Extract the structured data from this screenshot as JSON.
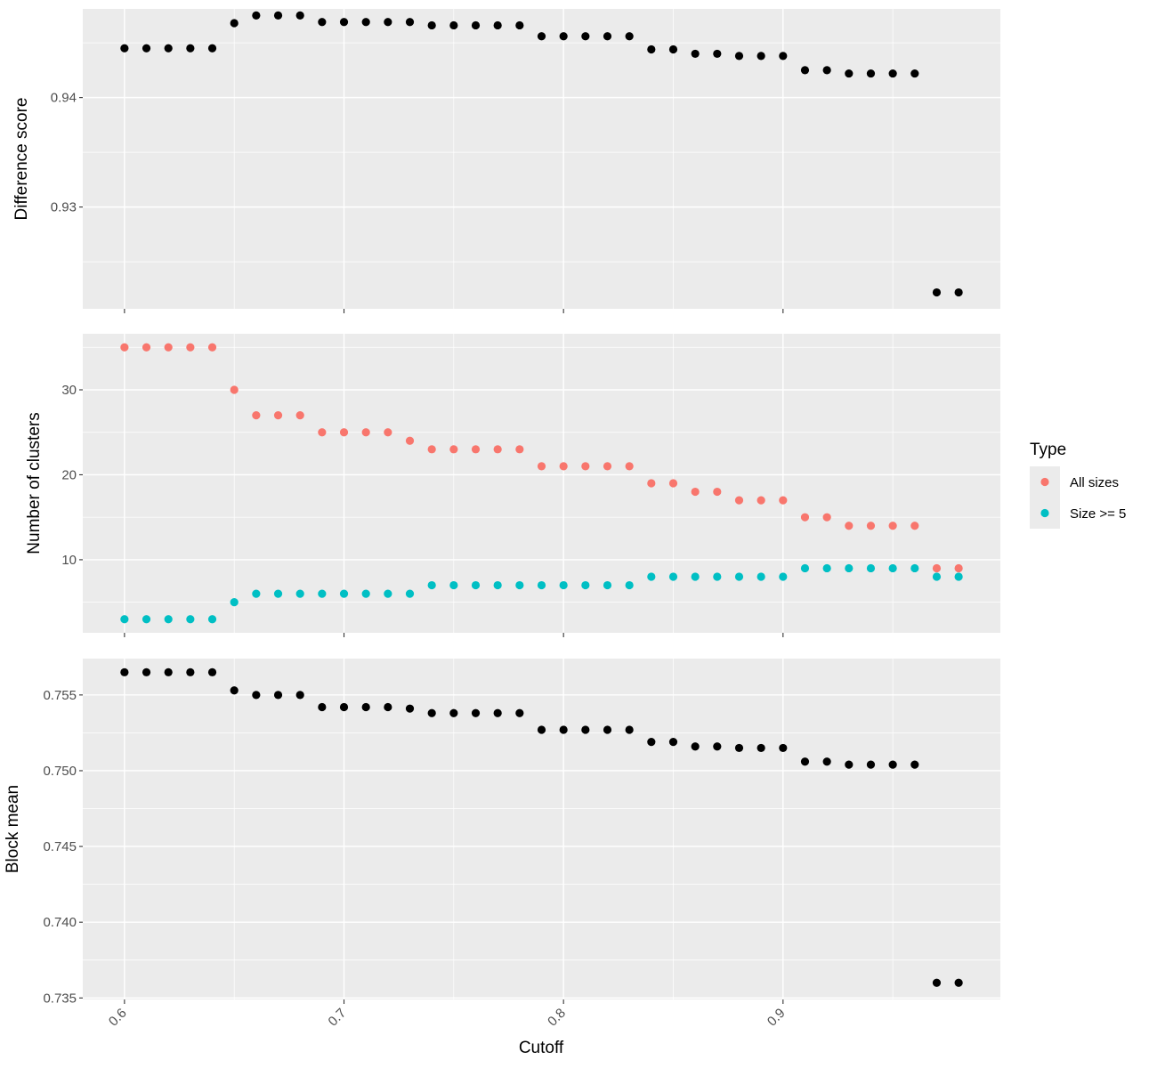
{
  "chart_data": {
    "type": "scatter",
    "shared_x_label": "Cutoff",
    "x_range": [
      0.581,
      0.999
    ],
    "x_ticks": [
      0.6,
      0.7,
      0.8,
      0.9
    ],
    "x_tick_labels": [
      "0.6",
      "0.7",
      "0.8",
      "0.9"
    ],
    "x_minor": [
      0.65,
      0.75,
      0.85,
      0.95
    ],
    "legend": {
      "title": "Type",
      "position": "right",
      "entries": [
        {
          "label": "All sizes",
          "color": "#F8766D"
        },
        {
          "label": "Size >= 5",
          "color": "#00BFC4"
        }
      ]
    },
    "panels": [
      {
        "ylabel": "Difference score",
        "ylim": [
          0.9207,
          0.9481
        ],
        "y_ticks": [
          0.93,
          0.94
        ],
        "y_tick_labels": [
          "0.93",
          "0.94"
        ],
        "y_minor": [
          0.925,
          0.935,
          0.945
        ],
        "series": [
          {
            "color": "#000000",
            "x": [
              0.6,
              0.61,
              0.62,
              0.63,
              0.64,
              0.65,
              0.66,
              0.67,
              0.68,
              0.69,
              0.7,
              0.71,
              0.72,
              0.73,
              0.74,
              0.75,
              0.76,
              0.77,
              0.78,
              0.79,
              0.8,
              0.81,
              0.82,
              0.83,
              0.84,
              0.85,
              0.86,
              0.87,
              0.88,
              0.89,
              0.9,
              0.91,
              0.92,
              0.93,
              0.94,
              0.95,
              0.96,
              0.97,
              0.98
            ],
            "y": [
              0.9445,
              0.9445,
              0.9445,
              0.9445,
              0.9445,
              0.9468,
              0.9475,
              0.9475,
              0.9475,
              0.9469,
              0.9469,
              0.9469,
              0.9469,
              0.9469,
              0.9466,
              0.9466,
              0.9466,
              0.9466,
              0.9466,
              0.9456,
              0.9456,
              0.9456,
              0.9456,
              0.9456,
              0.9444,
              0.9444,
              0.944,
              0.944,
              0.9438,
              0.9438,
              0.9438,
              0.9425,
              0.9425,
              0.9422,
              0.9422,
              0.9422,
              0.9422,
              0.9222,
              0.9222
            ]
          }
        ]
      },
      {
        "ylabel": "Number of clusters",
        "ylim": [
          1.4,
          36.6
        ],
        "y_ticks": [
          10,
          20,
          30
        ],
        "y_tick_labels": [
          "10",
          "20",
          "30"
        ],
        "y_minor": [
          5,
          15,
          25,
          35
        ],
        "series": [
          {
            "name": "All sizes",
            "color": "#F8766D",
            "x": [
              0.6,
              0.61,
              0.62,
              0.63,
              0.64,
              0.65,
              0.66,
              0.67,
              0.68,
              0.69,
              0.7,
              0.71,
              0.72,
              0.73,
              0.74,
              0.75,
              0.76,
              0.77,
              0.78,
              0.79,
              0.8,
              0.81,
              0.82,
              0.83,
              0.84,
              0.85,
              0.86,
              0.87,
              0.88,
              0.89,
              0.9,
              0.91,
              0.92,
              0.93,
              0.94,
              0.95,
              0.96,
              0.97,
              0.98
            ],
            "y": [
              35,
              35,
              35,
              35,
              35,
              30,
              27,
              27,
              27,
              25,
              25,
              25,
              25,
              24,
              23,
              23,
              23,
              23,
              23,
              21,
              21,
              21,
              21,
              21,
              19,
              19,
              18,
              18,
              17,
              17,
              17,
              15,
              15,
              14,
              14,
              14,
              14,
              9,
              9
            ]
          },
          {
            "name": "Size >= 5",
            "color": "#00BFC4",
            "x": [
              0.6,
              0.61,
              0.62,
              0.63,
              0.64,
              0.65,
              0.66,
              0.67,
              0.68,
              0.69,
              0.7,
              0.71,
              0.72,
              0.73,
              0.74,
              0.75,
              0.76,
              0.77,
              0.78,
              0.79,
              0.8,
              0.81,
              0.82,
              0.83,
              0.84,
              0.85,
              0.86,
              0.87,
              0.88,
              0.89,
              0.9,
              0.91,
              0.92,
              0.93,
              0.94,
              0.95,
              0.96,
              0.97,
              0.98
            ],
            "y": [
              3,
              3,
              3,
              3,
              3,
              5,
              6,
              6,
              6,
              6,
              6,
              6,
              6,
              6,
              7,
              7,
              7,
              7,
              7,
              7,
              7,
              7,
              7,
              7,
              8,
              8,
              8,
              8,
              8,
              8,
              8,
              9,
              9,
              9,
              9,
              9,
              9,
              8,
              8
            ]
          }
        ]
      },
      {
        "ylabel": "Block mean",
        "ylim": [
          0.7349,
          0.7574
        ],
        "y_ticks": [
          0.735,
          0.74,
          0.745,
          0.75,
          0.755
        ],
        "y_tick_labels": [
          "0.735",
          "0.740",
          "0.745",
          "0.750",
          "0.755"
        ],
        "y_minor": [
          0.7375,
          0.7425,
          0.7475,
          0.7525
        ],
        "series": [
          {
            "color": "#000000",
            "x": [
              0.6,
              0.61,
              0.62,
              0.63,
              0.64,
              0.65,
              0.66,
              0.67,
              0.68,
              0.69,
              0.7,
              0.71,
              0.72,
              0.73,
              0.74,
              0.75,
              0.76,
              0.77,
              0.78,
              0.79,
              0.8,
              0.81,
              0.82,
              0.83,
              0.84,
              0.85,
              0.86,
              0.87,
              0.88,
              0.89,
              0.9,
              0.91,
              0.92,
              0.93,
              0.94,
              0.95,
              0.96,
              0.97,
              0.98
            ],
            "y": [
              0.7565,
              0.7565,
              0.7565,
              0.7565,
              0.7565,
              0.7553,
              0.755,
              0.755,
              0.755,
              0.7542,
              0.7542,
              0.7542,
              0.7542,
              0.7541,
              0.7538,
              0.7538,
              0.7538,
              0.7538,
              0.7538,
              0.7527,
              0.7527,
              0.7527,
              0.7527,
              0.7527,
              0.7519,
              0.7519,
              0.7516,
              0.7516,
              0.7515,
              0.7515,
              0.7515,
              0.7506,
              0.7506,
              0.7504,
              0.7504,
              0.7504,
              0.7504,
              0.736,
              0.736
            ]
          }
        ]
      }
    ]
  }
}
